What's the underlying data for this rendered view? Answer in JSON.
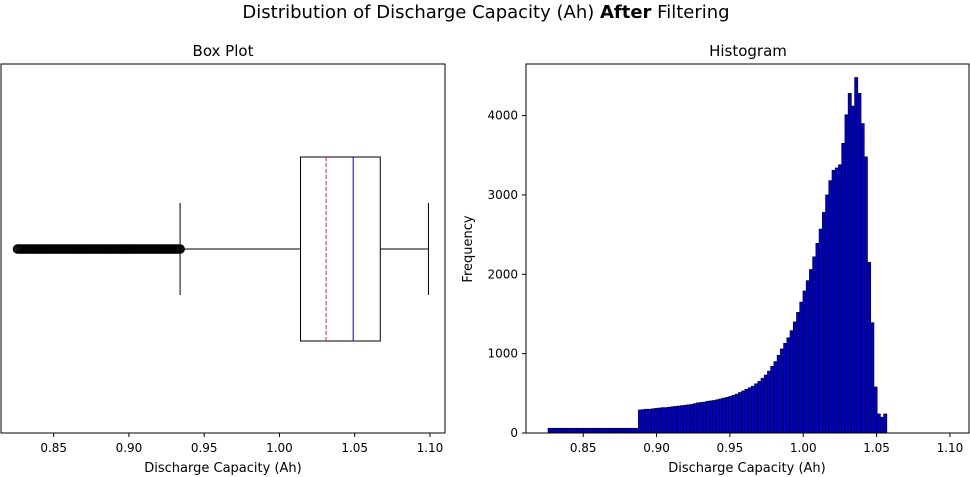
{
  "figure": {
    "title_prefix": "Distribution of Discharge Capacity (Ah) ",
    "title_bold": "After",
    "title_suffix": " Filtering"
  },
  "chart_data": [
    {
      "type": "box",
      "title": "Box Plot",
      "xlabel": "Discharge Capacity (Ah)",
      "ylabel": "",
      "xlim": [
        0.815,
        1.11
      ],
      "xticks": [
        0.85,
        0.9,
        0.95,
        1.0,
        1.05,
        1.1
      ],
      "xtick_labels": [
        "0.85",
        "0.90",
        "0.95",
        "1.00",
        "1.05",
        "1.10"
      ],
      "orientation": "horizontal",
      "whisker_low": 0.934,
      "q1": 1.014,
      "median": 1.049,
      "mean": 1.031,
      "q3": 1.067,
      "whisker_high": 1.099,
      "outliers_range": [
        0.826,
        0.934
      ],
      "box_color": "#000000",
      "median_color": "#0000cc",
      "mean_color": "#d62728"
    },
    {
      "type": "histogram",
      "title": "Histogram",
      "xlabel": "Discharge Capacity (Ah)",
      "ylabel": "Frequency",
      "xlim": [
        0.811,
        1.113
      ],
      "ylim": [
        0,
        4650
      ],
      "xticks": [
        0.85,
        0.9,
        0.95,
        1.0,
        1.05,
        1.1
      ],
      "xtick_labels": [
        "0.85",
        "0.90",
        "0.95",
        "1.00",
        "1.05",
        "1.10"
      ],
      "yticks": [
        0,
        1000,
        2000,
        3000,
        4000
      ],
      "ytick_labels": [
        "0",
        "1000",
        "2000",
        "3000",
        "4000"
      ],
      "bin_start": 0.826,
      "bin_width": 0.0022,
      "bar_color": "#0000cc",
      "edge_color": "#000000",
      "counts": [
        60,
        60,
        60,
        60,
        60,
        60,
        60,
        60,
        60,
        60,
        60,
        60,
        60,
        60,
        60,
        60,
        60,
        60,
        60,
        60,
        60,
        60,
        60,
        60,
        60,
        60,
        60,
        60,
        290,
        295,
        300,
        300,
        305,
        310,
        315,
        320,
        320,
        325,
        330,
        335,
        340,
        345,
        350,
        355,
        360,
        370,
        380,
        385,
        390,
        400,
        405,
        410,
        420,
        430,
        440,
        450,
        460,
        475,
        490,
        510,
        530,
        550,
        570,
        590,
        620,
        650,
        690,
        730,
        780,
        840,
        900,
        980,
        1060,
        1130,
        1200,
        1290,
        1400,
        1520,
        1650,
        1790,
        1920,
        2060,
        2220,
        2390,
        2570,
        2780,
        3000,
        3180,
        3310,
        3340,
        3380,
        3650,
        4010,
        4280,
        4120,
        4480,
        4280,
        3900,
        3480,
        2150,
        1390,
        580,
        240,
        200,
        240
      ]
    }
  ]
}
